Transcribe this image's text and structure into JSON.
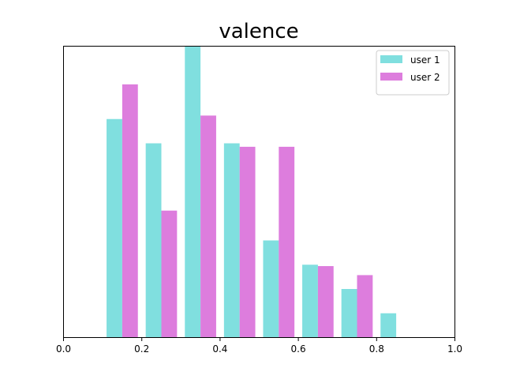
{
  "chart_data": {
    "type": "bar",
    "title": "valence",
    "xlabel": "",
    "ylabel": "",
    "xlim": [
      0.0,
      1.0
    ],
    "ylim": [
      0,
      42
    ],
    "x_ticks": [
      {
        "value": 0.0,
        "label": "0.0"
      },
      {
        "value": 0.2,
        "label": "0.2"
      },
      {
        "value": 0.4,
        "label": "0.4"
      },
      {
        "value": 0.6,
        "label": "0.6"
      },
      {
        "value": 0.8,
        "label": "0.8"
      },
      {
        "value": 1.0,
        "label": "1.0"
      }
    ],
    "y_ticks_visible": false,
    "grid": false,
    "legend_position": "top-right",
    "bin_edges": [
      0.11,
      0.21,
      0.31,
      0.41,
      0.51,
      0.61,
      0.71,
      0.81
    ],
    "series": [
      {
        "name": "user 1",
        "color": "#80dfdf",
        "values": [
          31.5,
          28,
          42,
          28,
          14,
          10.5,
          7,
          3.5
        ]
      },
      {
        "name": "user 2",
        "color": "#dd7ddd",
        "values": [
          36.5,
          18.3,
          32,
          27.5,
          27.5,
          10.3,
          9,
          0
        ]
      }
    ]
  }
}
